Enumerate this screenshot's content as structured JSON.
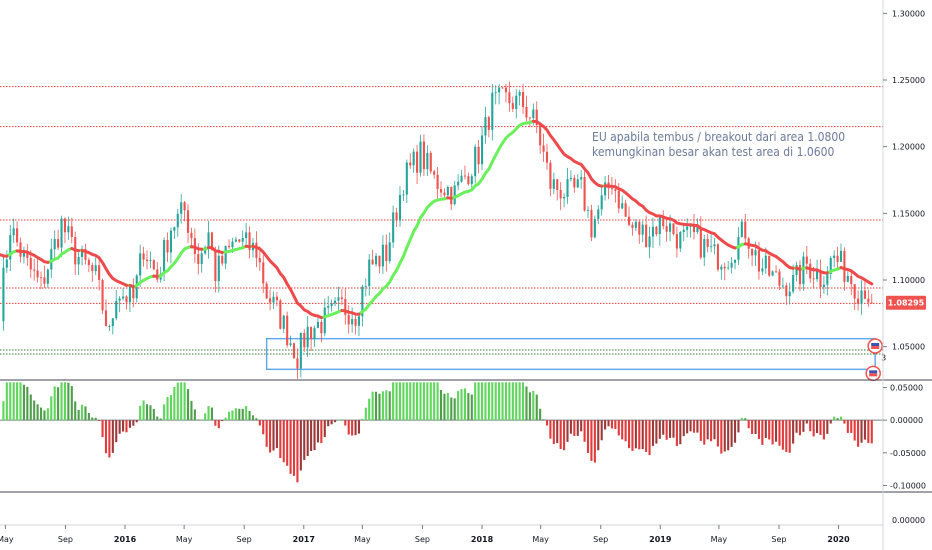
{
  "chart_data": {
    "type": "candlestick",
    "instrument_timeframe": "weekly",
    "price_axis": {
      "range": [
        1.025,
        1.31
      ],
      "ticks": [
        "1.30000",
        "1.25000",
        "1.20000",
        "1.15000",
        "1.10000",
        "1.05000"
      ],
      "last_price": "1.08295",
      "last_price_value": 1.08295
    },
    "oscillator_axis": {
      "range": [
        -0.11,
        0.06
      ],
      "ticks": [
        "0.05000",
        "0.00000",
        "-0.05000",
        "-0.10000"
      ],
      "lower_ticks": [
        "0.00000"
      ]
    },
    "x_axis": {
      "range": [
        "2015-04-20",
        "2020-04-01"
      ],
      "ticks": [
        {
          "date": "2015-05-01",
          "label": "May",
          "bold": false
        },
        {
          "date": "2015-09-01",
          "label": "Sep",
          "bold": false
        },
        {
          "date": "2016-01-01",
          "label": "2016",
          "bold": true
        },
        {
          "date": "2016-05-01",
          "label": "May",
          "bold": false
        },
        {
          "date": "2016-09-01",
          "label": "Sep",
          "bold": false
        },
        {
          "date": "2017-01-01",
          "label": "2017",
          "bold": true
        },
        {
          "date": "2017-05-01",
          "label": "May",
          "bold": false
        },
        {
          "date": "2017-09-01",
          "label": "Sep",
          "bold": false
        },
        {
          "date": "2018-01-01",
          "label": "2018",
          "bold": true
        },
        {
          "date": "2018-05-01",
          "label": "May",
          "bold": false
        },
        {
          "date": "2018-09-01",
          "label": "Sep",
          "bold": false
        },
        {
          "date": "2019-01-01",
          "label": "2019",
          "bold": true
        },
        {
          "date": "2019-05-01",
          "label": "May",
          "bold": false
        },
        {
          "date": "2019-09-01",
          "label": "Sep",
          "bold": false
        },
        {
          "date": "2020-01-01",
          "label": "2020",
          "bold": true
        }
      ]
    },
    "horizontal_levels": [
      {
        "price": 1.245,
        "style": "dotted",
        "color": "#e53935"
      },
      {
        "price": 1.215,
        "style": "dotted",
        "color": "#e53935"
      },
      {
        "price": 1.145,
        "style": "dotted",
        "color": "#e53935"
      },
      {
        "price": 1.094,
        "style": "dotted",
        "color": "#e53935"
      },
      {
        "price": 1.0825,
        "style": "dotted",
        "color": "#e53935"
      },
      {
        "price": 1.0475,
        "style": "dotted",
        "color": "#2e7d32"
      },
      {
        "price": 1.0445,
        "style": "dotted",
        "color": "#2e7d32"
      }
    ],
    "zone_box": {
      "from": "2016-10-17",
      "to": "2020-03-16",
      "top": 1.056,
      "bottom": 1.033,
      "color": "#64a9ee"
    },
    "annotation_lines": [
      "EU apabila  tembus / breakout dari  area 1.0800",
      "kemungkinan besar akan test area di 1.0600"
    ],
    "marker_label": "3",
    "anchors": [
      [
        "2015-04-20",
        1.08
      ],
      [
        "2015-05-11",
        1.14
      ],
      [
        "2015-06-08",
        1.115
      ],
      [
        "2015-07-13",
        1.095
      ],
      [
        "2015-08-24",
        1.142
      ],
      [
        "2015-09-21",
        1.12
      ],
      [
        "2015-11-02",
        1.102
      ],
      [
        "2015-11-30",
        1.058
      ],
      [
        "2015-12-14",
        1.092
      ],
      [
        "2016-01-18",
        1.085
      ],
      [
        "2016-02-08",
        1.125
      ],
      [
        "2016-03-07",
        1.102
      ],
      [
        "2016-04-04",
        1.14
      ],
      [
        "2016-05-02",
        1.152
      ],
      [
        "2016-05-30",
        1.115
      ],
      [
        "2016-06-20",
        1.135
      ],
      [
        "2016-07-04",
        1.105
      ],
      [
        "2016-08-15",
        1.13
      ],
      [
        "2016-09-26",
        1.122
      ],
      [
        "2016-10-17",
        1.09
      ],
      [
        "2016-11-14",
        1.072
      ],
      [
        "2016-12-19",
        1.043
      ],
      [
        "2017-01-09",
        1.062
      ],
      [
        "2017-02-06",
        1.068
      ],
      [
        "2017-03-20",
        1.08
      ],
      [
        "2017-04-17",
        1.075
      ],
      [
        "2017-05-15",
        1.11
      ],
      [
        "2017-06-19",
        1.12
      ],
      [
        "2017-07-24",
        1.175
      ],
      [
        "2017-08-28",
        1.195
      ],
      [
        "2017-09-25",
        1.175
      ],
      [
        "2017-11-06",
        1.165
      ],
      [
        "2017-12-25",
        1.195
      ],
      [
        "2018-01-22",
        1.232
      ],
      [
        "2018-02-19",
        1.235
      ],
      [
        "2018-03-26",
        1.232
      ],
      [
        "2018-04-23",
        1.215
      ],
      [
        "2018-05-21",
        1.172
      ],
      [
        "2018-06-25",
        1.165
      ],
      [
        "2018-07-23",
        1.168
      ],
      [
        "2018-08-13",
        1.14
      ],
      [
        "2018-09-24",
        1.175
      ],
      [
        "2018-10-29",
        1.14
      ],
      [
        "2018-12-03",
        1.135
      ],
      [
        "2019-01-07",
        1.145
      ],
      [
        "2019-02-11",
        1.13
      ],
      [
        "2019-03-11",
        1.132
      ],
      [
        "2019-04-22",
        1.118
      ],
      [
        "2019-05-20",
        1.118
      ],
      [
        "2019-06-24",
        1.138
      ],
      [
        "2019-07-22",
        1.112
      ],
      [
        "2019-09-02",
        1.098
      ],
      [
        "2019-09-30",
        1.097
      ],
      [
        "2019-10-28",
        1.112
      ],
      [
        "2019-11-25",
        1.102
      ],
      [
        "2019-12-23",
        1.117
      ],
      [
        "2020-01-20",
        1.105
      ],
      [
        "2020-02-10",
        1.093
      ],
      [
        "2020-02-24",
        1.095
      ],
      [
        "2020-03-09",
        1.083
      ]
    ]
  },
  "colors": {
    "up": "#26a69a",
    "down": "#ef5350",
    "ma_up": "#69f05a",
    "ma_down": "#f0494b",
    "osc_up": "#5fd65c",
    "osc_down": "#e23b3b",
    "osc_up_fade": "#4f9e4a",
    "osc_down_fade": "#9c3a3a",
    "price_label_bg": "#ef5350",
    "zone": "#64a9ee",
    "annotation": "#6b7a99"
  }
}
